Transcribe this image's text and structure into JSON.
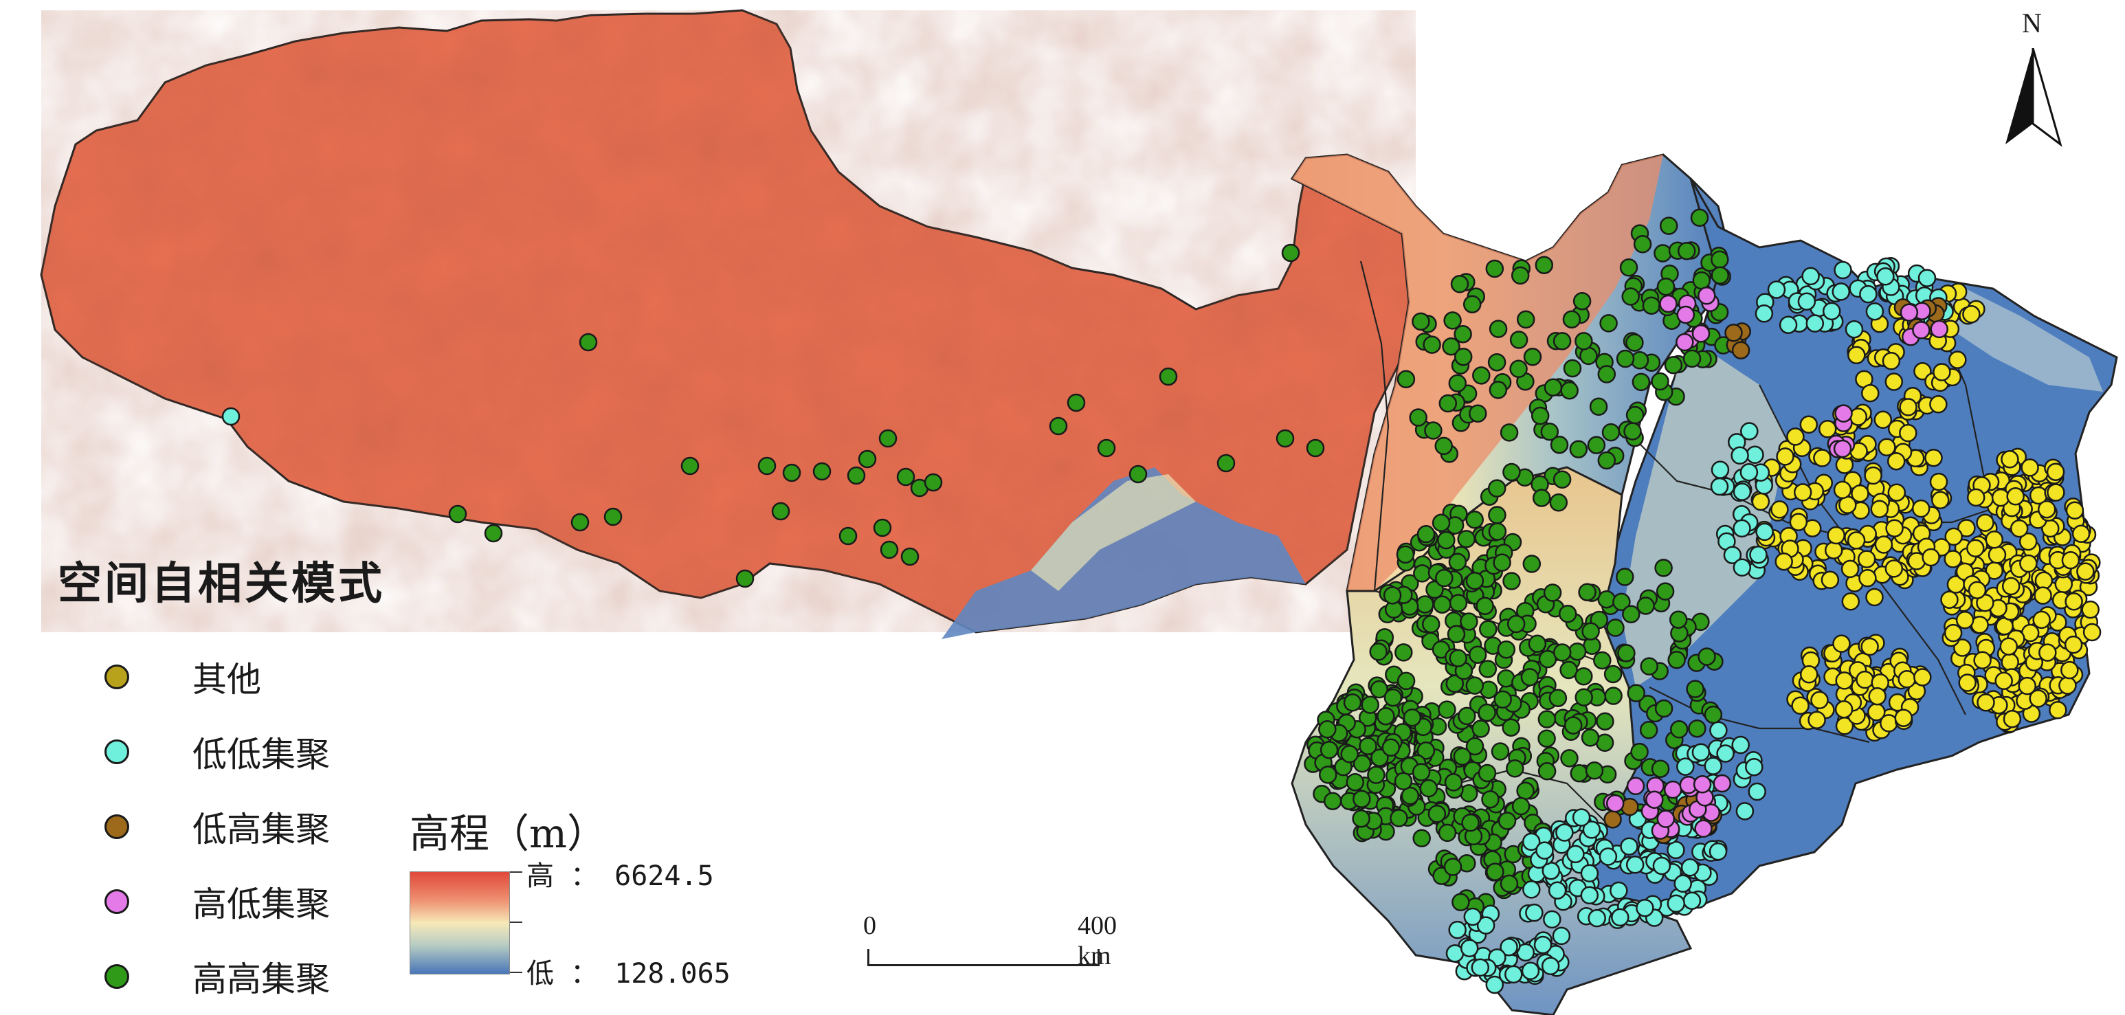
{
  "legend": {
    "title": "空间自相关模式",
    "items": [
      {
        "label": "其他",
        "color": "#b8a21c"
      },
      {
        "label": "低低集聚",
        "color": "#6ff0dc"
      },
      {
        "label": "低高集聚",
        "color": "#9c6a1a"
      },
      {
        "label": "高低集聚",
        "color": "#e37ae8"
      },
      {
        "label": "高高集聚",
        "color": "#2e9a18"
      }
    ]
  },
  "elevation": {
    "title": "高程（m）",
    "high_label": "高 ： 6624.5",
    "low_label": "低 ： 128.065",
    "color_high": "#e0483a",
    "color_low": "#4876b8"
  },
  "scale_bar": {
    "start": "0",
    "end": "400 km"
  },
  "north_arrow": {
    "label": "N"
  },
  "point_colors": {
    "high_high": "#2e9a18",
    "low_low": "#6ff0dc",
    "low_high": "#9c6a1a",
    "high_low": "#e37ae8",
    "other": "#b8a21c",
    "extra_yellow": "#f2e422"
  }
}
